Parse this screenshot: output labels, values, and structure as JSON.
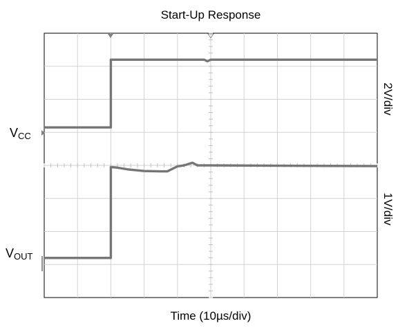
{
  "chart_data": {
    "type": "line",
    "title": "Start-Up Response",
    "xlabel": "Time (10µs/div)",
    "x_divisions": 10,
    "y_divisions": 8,
    "grid": true,
    "channels": [
      {
        "name_main": "V",
        "name_sub": "CC",
        "scale": "2V/div",
        "color": "#808080",
        "points": [
          [
            0,
            5.15
          ],
          [
            2,
            5.15
          ],
          [
            2,
            7.2
          ],
          [
            4.8,
            7.2
          ],
          [
            4.9,
            7.15
          ],
          [
            5.0,
            7.2
          ],
          [
            10,
            7.2
          ]
        ]
      },
      {
        "name_main": "V",
        "name_sub": "OUT",
        "scale": "1V/div",
        "color": "#808080",
        "points": [
          [
            0,
            1.2
          ],
          [
            2,
            1.2
          ],
          [
            2,
            3.95
          ],
          [
            2.2,
            3.93
          ],
          [
            2.5,
            3.88
          ],
          [
            3.0,
            3.83
          ],
          [
            3.5,
            3.82
          ],
          [
            3.7,
            3.82
          ],
          [
            4.0,
            3.97
          ],
          [
            4.2,
            4.0
          ],
          [
            4.45,
            4.08
          ],
          [
            4.6,
            4.0
          ],
          [
            5.0,
            4.0
          ],
          [
            10,
            3.98
          ]
        ]
      }
    ]
  }
}
